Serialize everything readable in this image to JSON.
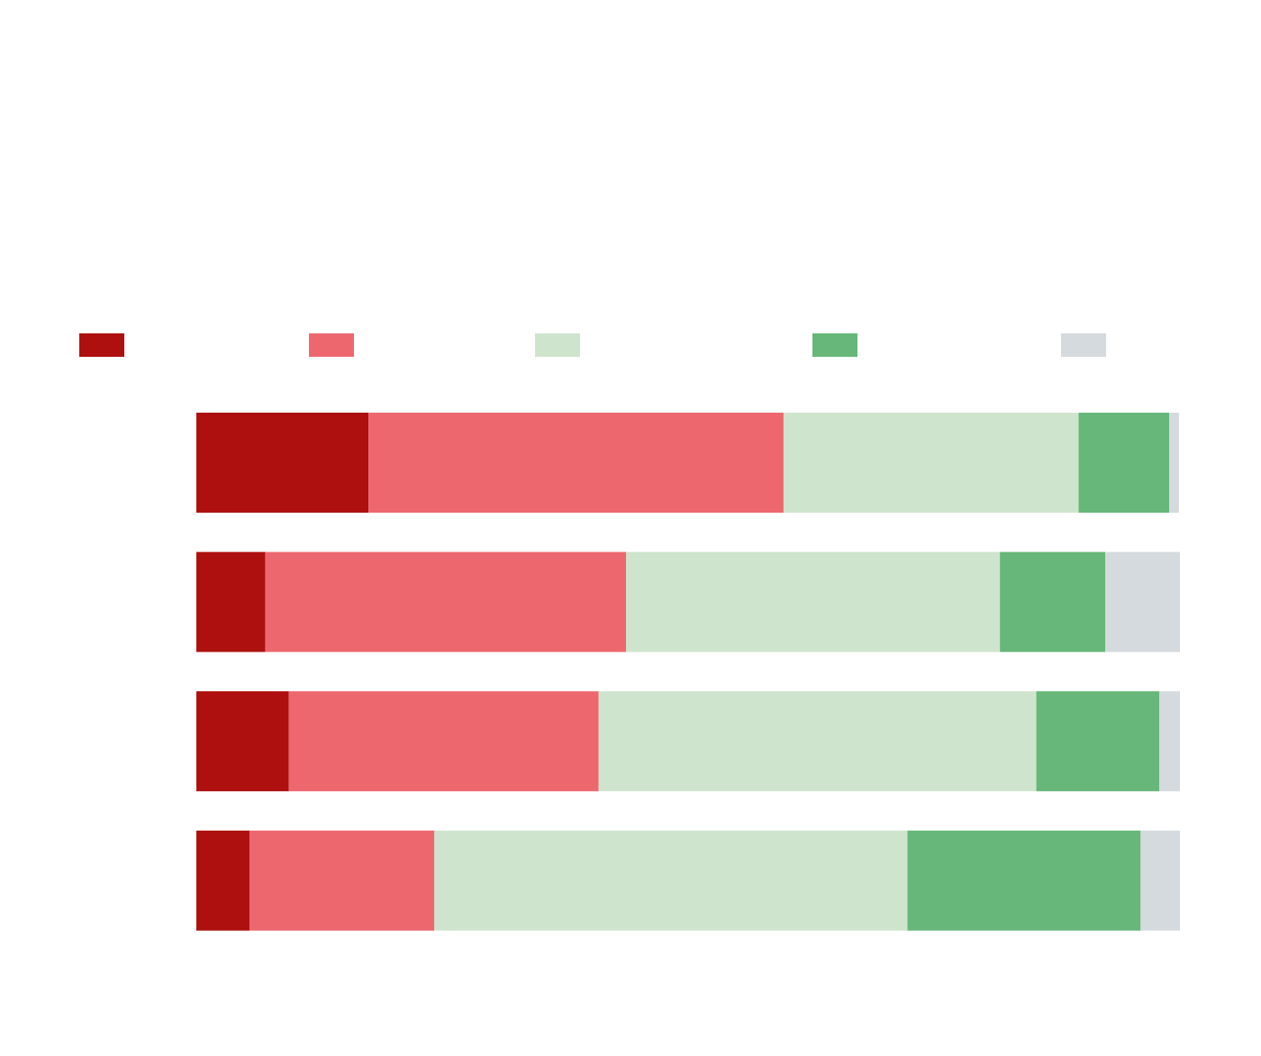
{
  "chart_data": {
    "type": "stacked-bar-horizontal",
    "categories": [
      null,
      null,
      null,
      null
    ],
    "xlim": [
      0,
      100
    ],
    "series": [
      {
        "color": "#ad100e",
        "values": [
          17.5,
          7.0,
          9.4,
          5.4
        ]
      },
      {
        "color": "#ed686e",
        "values": [
          42.2,
          36.7,
          31.5,
          18.8
        ]
      },
      {
        "color": "#cfe4cd",
        "values": [
          30.0,
          38.0,
          44.5,
          48.1
        ]
      },
      {
        "color": "#66b779",
        "values": [
          9.2,
          10.7,
          12.5,
          23.7
        ]
      },
      {
        "color": "#d4dade",
        "values": [
          1.0,
          7.6,
          2.1,
          4.0
        ]
      }
    ]
  }
}
